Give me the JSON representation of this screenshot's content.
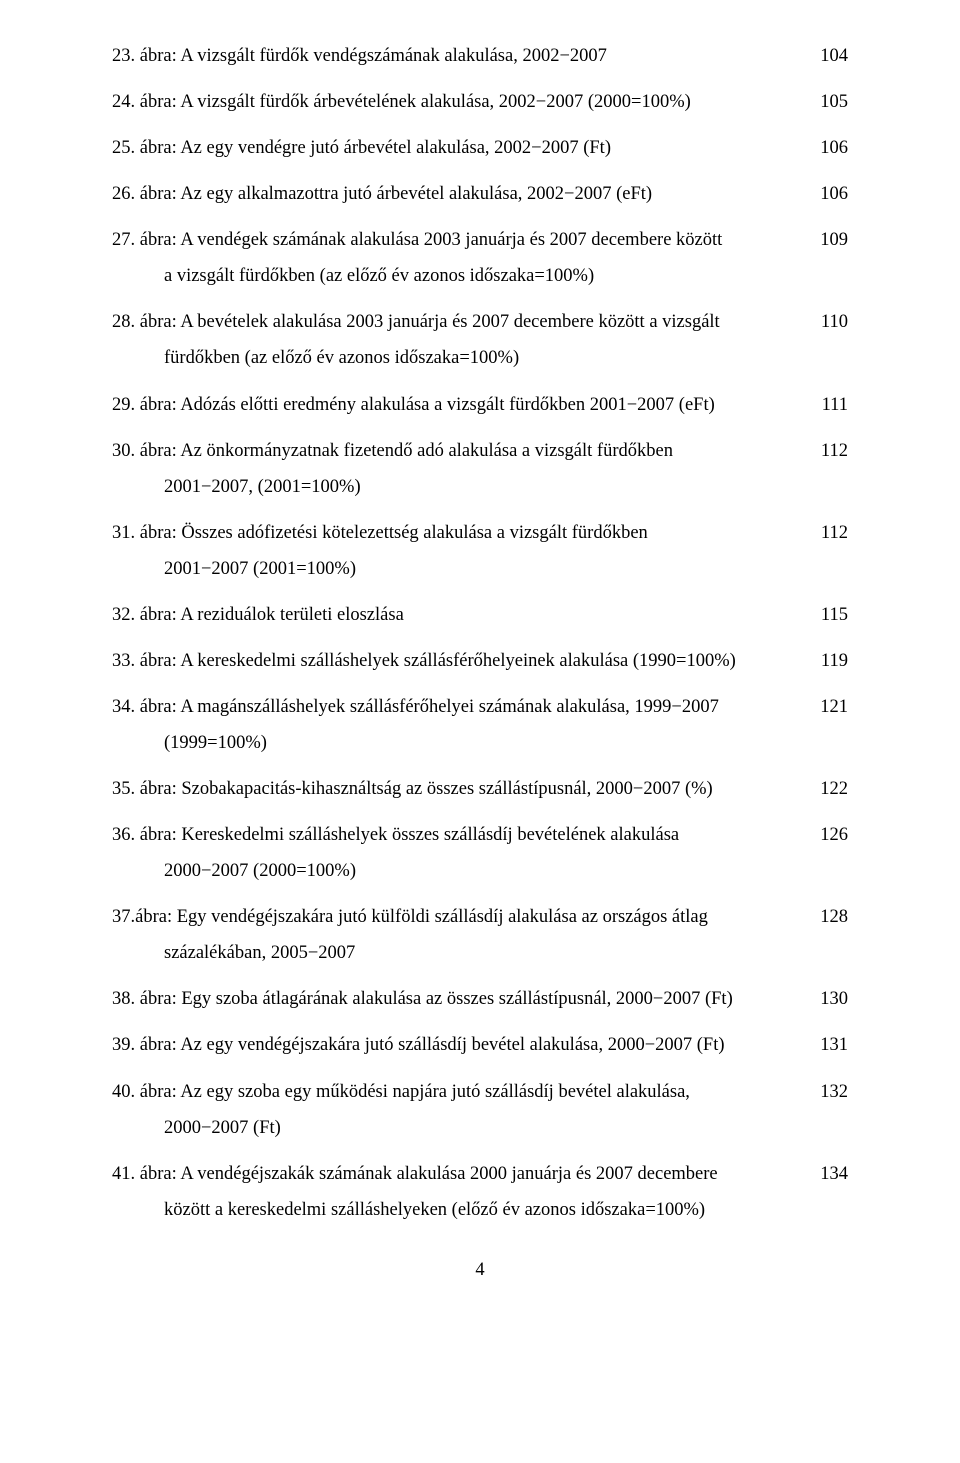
{
  "font": {
    "family": "Times New Roman",
    "size_pt": 14,
    "color": "#000000"
  },
  "background_color": "#ffffff",
  "entries": [
    {
      "n": "23",
      "l1": "23. ábra: A vizsgált fürdők vendégszámának alakulása, 2002−2007",
      "page": "104"
    },
    {
      "n": "24",
      "l1": "24. ábra: A vizsgált fürdők árbevételének alakulása, 2002−2007 (2000=100%)",
      "page": "105"
    },
    {
      "n": "25",
      "l1": "25. ábra: Az egy vendégre jutó árbevétel alakulása, 2002−2007 (Ft)",
      "page": "106"
    },
    {
      "n": "26",
      "l1": "26. ábra: Az egy alkalmazottra jutó árbevétel alakulása, 2002−2007 (eFt)",
      "page": "106"
    },
    {
      "n": "27",
      "l1": "27. ábra: A vendégek számának alakulása 2003 januárja és 2007 decembere között",
      "l2": "a vizsgált fürdőkben (az előző év azonos időszaka=100%)",
      "page": "109"
    },
    {
      "n": "28",
      "l1": "28. ábra: A bevételek alakulása 2003 januárja és 2007 decembere között a vizsgált",
      "l2": "fürdőkben (az előző év azonos időszaka=100%)",
      "page": "110"
    },
    {
      "n": "29",
      "l1": "29. ábra: Adózás előtti eredmény alakulása a vizsgált fürdőkben 2001−2007 (eFt)",
      "page": "111"
    },
    {
      "n": "30",
      "l1": "30. ábra: Az önkormányzatnak fizetendő adó alakulása a vizsgált fürdőkben",
      "l2": "2001−2007, (2001=100%)",
      "page": "112"
    },
    {
      "n": "31",
      "l1": "31. ábra: Összes adófizetési kötelezettség alakulása a vizsgált fürdőkben",
      "l2": "2001−2007 (2001=100%)",
      "page": "112"
    },
    {
      "n": "32",
      "l1": "32. ábra: A reziduálok területi eloszlása",
      "page": "115"
    },
    {
      "n": "33",
      "l1": "33. ábra: A kereskedelmi szálláshelyek szállásférőhelyeinek alakulása (1990=100%)",
      "page": "119"
    },
    {
      "n": "34",
      "l1": "34. ábra: A magánszálláshelyek szállásférőhelyei számának alakulása, 1999−2007",
      "l2": "(1999=100%)",
      "page": "121"
    },
    {
      "n": "35",
      "l1": "35. ábra: Szobakapacitás-kihasználtság az összes szállástípusnál, 2000−2007 (%)",
      "page": "122"
    },
    {
      "n": "36",
      "l1": "36. ábra: Kereskedelmi szálláshelyek összes szállásdíj bevételének alakulása",
      "l2": "2000−2007 (2000=100%)",
      "page": "126"
    },
    {
      "n": "37",
      "l1": "37.ábra: Egy vendégéjszakára jutó külföldi szállásdíj alakulása az országos átlag",
      "l2": "százalékában, 2005−2007",
      "page": "128"
    },
    {
      "n": "38",
      "l1": "38. ábra: Egy szoba átlagárának alakulása az összes szállástípusnál, 2000−2007 (Ft)",
      "page": "130"
    },
    {
      "n": "39",
      "l1": "39. ábra: Az egy vendégéjszakára jutó szállásdíj bevétel alakulása, 2000−2007 (Ft)",
      "page": "131"
    },
    {
      "n": "40",
      "l1": "40. ábra: Az egy szoba egy működési napjára jutó szállásdíj bevétel alakulása,",
      "l2": "2000−2007 (Ft)",
      "page": "132"
    },
    {
      "n": "41",
      "l1": "41. ábra: A vendégéjszakák számának alakulása 2000 januárja és 2007 decembere",
      "l2": "között a kereskedelmi szálláshelyeken (előző év azonos időszaka=100%)",
      "page": "134"
    }
  ],
  "footer_page_number": "4"
}
